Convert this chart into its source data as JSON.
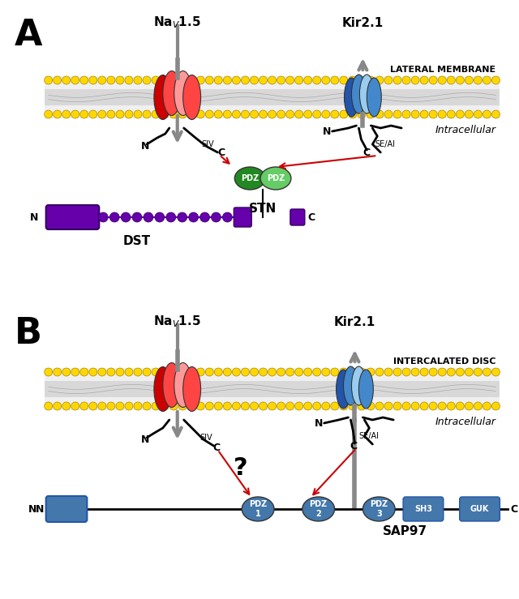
{
  "background_color": "#ffffff",
  "panel_A_label": "A",
  "panel_B_label": "B",
  "nav_title_A": "Na",
  "nav_sub_A": "V",
  "nav_num_A": "1.5",
  "kir_title_A": "Kir2.1",
  "lateral_membrane_label": "LATERAL MEMBRANE",
  "intracellular_label_A": "Intracellular",
  "stn_label": "STN",
  "dst_label": "DST",
  "nav_title_B": "Na",
  "nav_sub_B": "V",
  "nav_num_B": "1.5",
  "kir_title_B": "Kir2.1",
  "intercalated_disc_label": "INTERCALATED DISC",
  "intracellular_label_B": "Intracellular",
  "sap97_label": "SAP97",
  "membrane_yellow": "#FFD700",
  "membrane_gray": "#C8C8C8",
  "nav_red_dark": "#CC0000",
  "nav_red_mid": "#FF4444",
  "nav_red_light": "#FF9999",
  "kir_blue_dark": "#2255AA",
  "kir_blue_mid": "#4488CC",
  "kir_blue_light": "#99CCEE",
  "dst_purple": "#6600AA",
  "stn_green_dark": "#228822",
  "stn_green_light": "#66CC66",
  "sap97_blue": "#4477AA",
  "arrow_gray": "#888888",
  "arrow_red": "#CC0000",
  "question_mark_color": "#000000",
  "pdz_label_color": "#000000"
}
